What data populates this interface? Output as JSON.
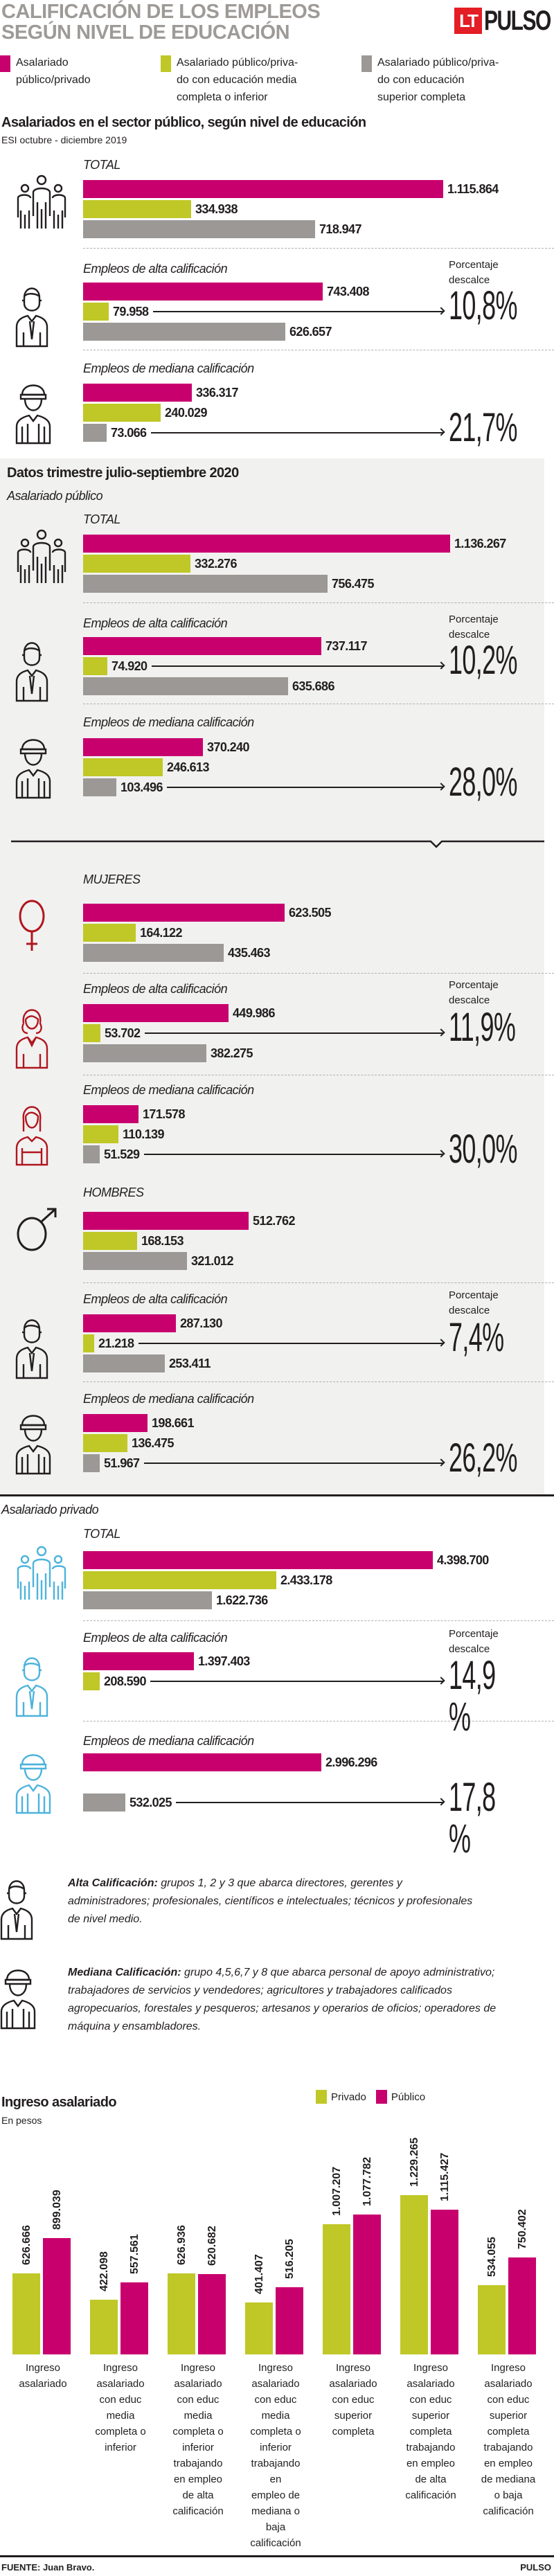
{
  "header": {
    "title_line1": "CALIFICACIÓN DE LOS EMPLEOS",
    "title_line2": "SEGÚN NIVEL DE EDUCACIÓN",
    "logo_lt": "LT",
    "logo_pulso": "PULSO"
  },
  "colors": {
    "magenta": "#c8006e",
    "lime": "#bfc826",
    "gray": "#9b9895",
    "panel": "#f1f1f0",
    "ink": "#221e1f",
    "female": "#b0161e",
    "private_icon": "#4db3dc"
  },
  "legend": [
    {
      "label_line1": "Asalariado",
      "label_line2": "público/privado",
      "label_line3": "",
      "color": "#c8006e"
    },
    {
      "label_line1": "Asalariado público/priva-",
      "label_line2": "do con educación media",
      "label_line3": "completa o inferior",
      "color": "#bfc826"
    },
    {
      "label_line1": "Asalariado público/priva-",
      "label_line2": "do con educación",
      "label_line3": "superior completa",
      "color": "#9b9895"
    }
  ],
  "section2019": {
    "heading": "Asalariados en el sector público, según nivel de educación",
    "subtitle": "ESI octubre - diciembre 2019"
  },
  "section2020": {
    "heading": "Datos trimestre julio-septiembre 2020",
    "public_label": "Asalariado público",
    "private_label": "Asalariado privado"
  },
  "pct_label_line1": "Porcentaje",
  "pct_label_line2": "descalce",
  "definitions": {
    "alta_term": "Alta Calificación:",
    "alta_text": " grupos 1, 2 y 3 que abarca directores, gerentes y administradores; profesionales, científicos e intelectuales; técnicos y profesionales de nivel medio.",
    "mediana_term": "Mediana Calificación:",
    "mediana_text": " grupo 4,5,6,7 y 8 que abarca personal de apoyo administrativo; trabajadores de servicios y vendedores; agricultores y trabajadores calificados agropecuarios, forestales y pesqueros; artesanos y operarios de oficios; operadores de máquina y ensambladores."
  },
  "footer": {
    "source": "FUENTE: Juan Bravo.",
    "brand": "PULSO"
  },
  "chart_data": [
    {
      "type": "bar",
      "orientation": "horizontal",
      "title": "Asalariados en el sector público, según nivel de educación",
      "subtitle": "ESI octubre - diciembre 2019",
      "series_names": [
        "Asalariado público/privado",
        "Asalariado público/privado con educación media completa o inferior",
        "Asalariado público/privado con educación superior completa"
      ],
      "groups": [
        {
          "label": "TOTAL",
          "values": [
            "1.115.864",
            "334.938",
            "718.947"
          ],
          "numeric": [
            1115864,
            334938,
            718947
          ],
          "pct": null
        },
        {
          "label": "Empleos de alta calificación",
          "values": [
            "743.408",
            "79.958",
            "626.657"
          ],
          "numeric": [
            743408,
            79958,
            626657
          ],
          "pct": "10,8%"
        },
        {
          "label": "Empleos de mediana calificación",
          "values": [
            "336.317",
            "240.029",
            "73.066"
          ],
          "numeric": [
            336317,
            240029,
            73066
          ],
          "pct": "21,7%"
        }
      ]
    },
    {
      "type": "bar",
      "orientation": "horizontal",
      "title": "Datos trimestre julio-septiembre 2020 — Asalariado público",
      "groups": [
        {
          "label": "TOTAL",
          "values": [
            "1.136.267",
            "332.276",
            "756.475"
          ],
          "numeric": [
            1136267,
            332276,
            756475
          ],
          "pct": null
        },
        {
          "label": "Empleos de alta calificación",
          "values": [
            "737.117",
            "74.920",
            "635.686"
          ],
          "numeric": [
            737117,
            74920,
            635686
          ],
          "pct": "10,2%"
        },
        {
          "label": "Empleos de mediana calificación",
          "values": [
            "370.240",
            "246.613",
            "103.496"
          ],
          "numeric": [
            370240,
            246613,
            103496
          ],
          "pct": "28,0%"
        }
      ]
    },
    {
      "type": "bar",
      "orientation": "horizontal",
      "title": "Mujeres",
      "groups": [
        {
          "label": "MUJERES",
          "values": [
            "623.505",
            "164.122",
            "435.463"
          ],
          "numeric": [
            623505,
            164122,
            435463
          ],
          "pct": null
        },
        {
          "label": "Empleos de alta calificación",
          "values": [
            "449.986",
            "53.702",
            "382.275"
          ],
          "numeric": [
            449986,
            53702,
            382275
          ],
          "pct": "11,9%"
        },
        {
          "label": "Empleos de mediana calificación",
          "values": [
            "171.578",
            "110.139",
            "51.529"
          ],
          "numeric": [
            171578,
            110139,
            51529
          ],
          "pct": "30,0%"
        }
      ]
    },
    {
      "type": "bar",
      "orientation": "horizontal",
      "title": "Hombres",
      "groups": [
        {
          "label": "HOMBRES",
          "values": [
            "512.762",
            "168.153",
            "321.012"
          ],
          "numeric": [
            512762,
            168153,
            321012
          ],
          "pct": null
        },
        {
          "label": "Empleos de alta calificación",
          "values": [
            "287.130",
            "21.218",
            "253.411"
          ],
          "numeric": [
            287130,
            21218,
            253411
          ],
          "pct": "7,4%"
        },
        {
          "label": "Empleos de mediana calificación",
          "values": [
            "198.661",
            "136.475",
            "51.967"
          ],
          "numeric": [
            198661,
            136475,
            51967
          ],
          "pct": "26,2%"
        }
      ]
    },
    {
      "type": "bar",
      "orientation": "horizontal",
      "title": "Asalariado privado",
      "groups": [
        {
          "label": "TOTAL",
          "values": [
            "4.398.700",
            "2.433.178",
            "1.622.736"
          ],
          "numeric": [
            4398700,
            2433178,
            1622736
          ],
          "pct": null
        },
        {
          "label": "Empleos de alta calificación",
          "values": [
            "1.397.403",
            "208.590",
            null
          ],
          "numeric": [
            1397403,
            208590,
            null
          ],
          "pct": "14,9 %"
        },
        {
          "label": "Empleos de mediana calificación",
          "values": [
            "2.996.296",
            null,
            "532.025"
          ],
          "numeric": [
            2996296,
            null,
            532025
          ],
          "pct": "17,8 %"
        }
      ]
    },
    {
      "type": "bar",
      "orientation": "vertical",
      "title": "Ingreso asalariado",
      "subtitle": "En pesos",
      "legend": [
        "Privado",
        "Público"
      ],
      "legend_position": "top-right",
      "categories": [
        [
          "Ingreso",
          "asalariado"
        ],
        [
          "Ingreso",
          "asalariado",
          "con educ",
          "media",
          "completa o",
          "inferior"
        ],
        [
          "Ingreso",
          "asalariado",
          "con educ",
          "media",
          "completa o",
          "inferior",
          "trabajando",
          "en empleo",
          "de alta",
          "calificación"
        ],
        [
          "Ingreso",
          "asalariado",
          "con educ",
          "media",
          "completa o",
          "inferior",
          "trabajando en",
          "empleo de",
          "mediana o",
          "baja",
          "calificación"
        ],
        [
          "Ingreso",
          "asalariado",
          "con educ",
          "superior",
          "completa"
        ],
        [
          "Ingreso",
          "asalariado",
          "con educ",
          "superior",
          "completa",
          "trabajando",
          "en empleo",
          "de alta",
          "calificación"
        ],
        [
          "Ingreso",
          "asalariado",
          "con educ",
          "superior",
          "completa",
          "trabajando",
          "en empleo",
          "de mediana",
          "o baja",
          "calificación"
        ]
      ],
      "series": [
        {
          "name": "Privado",
          "labels": [
            "626.666",
            "422.098",
            "626.936",
            "401.407",
            "1.007.207",
            "1.229.265",
            "534.055"
          ],
          "values": [
            626666,
            422098,
            626936,
            401407,
            1007207,
            1229265,
            534055
          ]
        },
        {
          "name": "Público",
          "labels": [
            "899.039",
            "557.561",
            "620.682",
            "516.205",
            "1.077.782",
            "1.115.427",
            "750.402"
          ],
          "values": [
            899039,
            557561,
            620682,
            516205,
            1077782,
            1115427,
            750402
          ]
        }
      ]
    }
  ]
}
